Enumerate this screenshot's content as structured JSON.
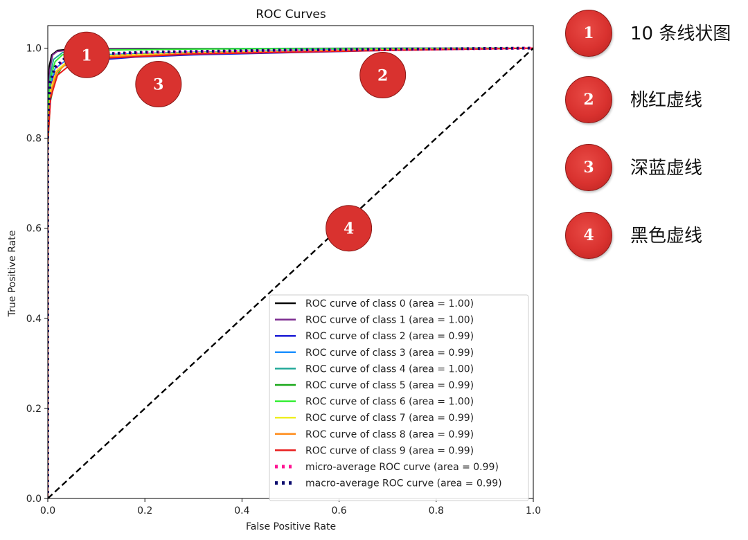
{
  "chart_data": {
    "type": "line",
    "title": "ROC Curves",
    "xlabel": "False Positive Rate",
    "ylabel": "True Positive Rate",
    "xlim": [
      0.0,
      1.0
    ],
    "ylim": [
      0.0,
      1.05
    ],
    "xticks": [
      "0.0",
      "0.2",
      "0.4",
      "0.6",
      "0.8",
      "1.0"
    ],
    "yticks": [
      "0.0",
      "0.2",
      "0.4",
      "0.6",
      "0.8",
      "1.0"
    ],
    "grid": false,
    "legend_position": "lower-right",
    "series": [
      {
        "name": "ROC curve of class 0 (area = 1.00)",
        "color": "#000000",
        "style": "solid",
        "points": [
          [
            0,
            0
          ],
          [
            0,
            0.9
          ],
          [
            0.003,
            0.96
          ],
          [
            0.008,
            0.985
          ],
          [
            0.02,
            0.995
          ],
          [
            0.05,
            0.998
          ],
          [
            0.2,
            0.999
          ],
          [
            1,
            1
          ]
        ]
      },
      {
        "name": "ROC curve of class 1 (area = 1.00)",
        "color": "#7b2a8f",
        "style": "solid",
        "points": [
          [
            0,
            0
          ],
          [
            0,
            0.88
          ],
          [
            0.004,
            0.95
          ],
          [
            0.01,
            0.985
          ],
          [
            0.02,
            0.993
          ],
          [
            0.06,
            0.997
          ],
          [
            0.3,
            0.999
          ],
          [
            1,
            1
          ]
        ]
      },
      {
        "name": "ROC curve of class 2 (area = 0.99)",
        "color": "#1f1fd6",
        "style": "solid",
        "points": [
          [
            0,
            0
          ],
          [
            0,
            0.8
          ],
          [
            0.004,
            0.9
          ],
          [
            0.012,
            0.94
          ],
          [
            0.03,
            0.96
          ],
          [
            0.08,
            0.972
          ],
          [
            0.12,
            0.975
          ],
          [
            0.18,
            0.98
          ],
          [
            0.3,
            0.985
          ],
          [
            0.5,
            0.99
          ],
          [
            0.7,
            0.995
          ],
          [
            1,
            1
          ]
        ]
      },
      {
        "name": "ROC curve of class 3 (area = 0.99)",
        "color": "#1e90ff",
        "style": "solid",
        "points": [
          [
            0,
            0
          ],
          [
            0,
            0.82
          ],
          [
            0.005,
            0.92
          ],
          [
            0.015,
            0.955
          ],
          [
            0.04,
            0.975
          ],
          [
            0.1,
            0.985
          ],
          [
            0.25,
            0.99
          ],
          [
            0.5,
            0.995
          ],
          [
            1,
            1
          ]
        ]
      },
      {
        "name": "ROC curve of class 4 (area = 1.00)",
        "color": "#22a999",
        "style": "solid",
        "points": [
          [
            0,
            0
          ],
          [
            0,
            0.86
          ],
          [
            0.005,
            0.94
          ],
          [
            0.012,
            0.975
          ],
          [
            0.03,
            0.99
          ],
          [
            0.1,
            0.996
          ],
          [
            0.4,
            0.999
          ],
          [
            1,
            1
          ]
        ]
      },
      {
        "name": "ROC curve of class 5 (area = 0.99)",
        "color": "#1aa81a",
        "style": "solid",
        "points": [
          [
            0,
            0
          ],
          [
            0,
            0.78
          ],
          [
            0.005,
            0.88
          ],
          [
            0.015,
            0.93
          ],
          [
            0.03,
            0.96
          ],
          [
            0.06,
            0.975
          ],
          [
            0.15,
            0.985
          ],
          [
            0.3,
            0.99
          ],
          [
            0.6,
            0.995
          ],
          [
            1,
            1
          ]
        ]
      },
      {
        "name": "ROC curve of class 6 (area = 1.00)",
        "color": "#33ee33",
        "style": "solid",
        "points": [
          [
            0,
            0
          ],
          [
            0,
            0.85
          ],
          [
            0.005,
            0.93
          ],
          [
            0.015,
            0.97
          ],
          [
            0.03,
            0.985
          ],
          [
            0.08,
            0.995
          ],
          [
            0.3,
            0.998
          ],
          [
            1,
            1
          ]
        ]
      },
      {
        "name": "ROC curve of class 7 (area = 0.99)",
        "color": "#eeee22",
        "style": "solid",
        "points": [
          [
            0,
            0
          ],
          [
            0,
            0.82
          ],
          [
            0.006,
            0.91
          ],
          [
            0.018,
            0.95
          ],
          [
            0.04,
            0.97
          ],
          [
            0.1,
            0.983
          ],
          [
            0.3,
            0.99
          ],
          [
            0.6,
            0.995
          ],
          [
            1,
            1
          ]
        ]
      },
      {
        "name": "ROC curve of class 8 (area = 0.99)",
        "color": "#ff8c1a",
        "style": "solid",
        "points": [
          [
            0,
            0
          ],
          [
            0,
            0.8
          ],
          [
            0.006,
            0.9
          ],
          [
            0.018,
            0.945
          ],
          [
            0.04,
            0.967
          ],
          [
            0.1,
            0.98
          ],
          [
            0.3,
            0.988
          ],
          [
            0.6,
            0.994
          ],
          [
            1,
            1
          ]
        ]
      },
      {
        "name": "ROC curve of class 9 (area = 0.99)",
        "color": "#e81c1c",
        "style": "solid",
        "points": [
          [
            0,
            0
          ],
          [
            0,
            0.79
          ],
          [
            0.006,
            0.89
          ],
          [
            0.02,
            0.94
          ],
          [
            0.045,
            0.962
          ],
          [
            0.1,
            0.977
          ],
          [
            0.3,
            0.987
          ],
          [
            0.6,
            0.993
          ],
          [
            1,
            1
          ]
        ]
      },
      {
        "name": "micro-average ROC curve (area = 0.99)",
        "color": "#ff1493",
        "style": "dotted",
        "points": [
          [
            0,
            0
          ],
          [
            0,
            0.83
          ],
          [
            0.005,
            0.92
          ],
          [
            0.015,
            0.955
          ],
          [
            0.035,
            0.975
          ],
          [
            0.08,
            0.985
          ],
          [
            0.2,
            0.99
          ],
          [
            0.5,
            0.995
          ],
          [
            1,
            1
          ]
        ]
      },
      {
        "name": "macro-average ROC curve (area = 0.99)",
        "color": "#0a0a6e",
        "style": "dotted",
        "points": [
          [
            0,
            0
          ],
          [
            0,
            0.84
          ],
          [
            0.005,
            0.925
          ],
          [
            0.015,
            0.958
          ],
          [
            0.035,
            0.977
          ],
          [
            0.08,
            0.986
          ],
          [
            0.2,
            0.991
          ],
          [
            0.5,
            0.996
          ],
          [
            1,
            1
          ]
        ]
      },
      {
        "name": "",
        "color": "#000000",
        "style": "dashed",
        "points": [
          [
            0,
            0
          ],
          [
            1,
            1
          ]
        ]
      }
    ],
    "annotations": [
      {
        "label": "1",
        "x": 0.08,
        "y": 0.985
      },
      {
        "label": "2",
        "x": 0.69,
        "y": 0.94
      },
      {
        "label": "3",
        "x": 0.228,
        "y": 0.92
      },
      {
        "label": "4",
        "x": 0.62,
        "y": 0.6
      }
    ]
  },
  "notes": [
    {
      "label": "1",
      "text": "10 条线状图"
    },
    {
      "label": "2",
      "text": "桃红虚线"
    },
    {
      "label": "3",
      "text": "深蓝虚线"
    },
    {
      "label": "4",
      "text": "黑色虚线"
    }
  ]
}
